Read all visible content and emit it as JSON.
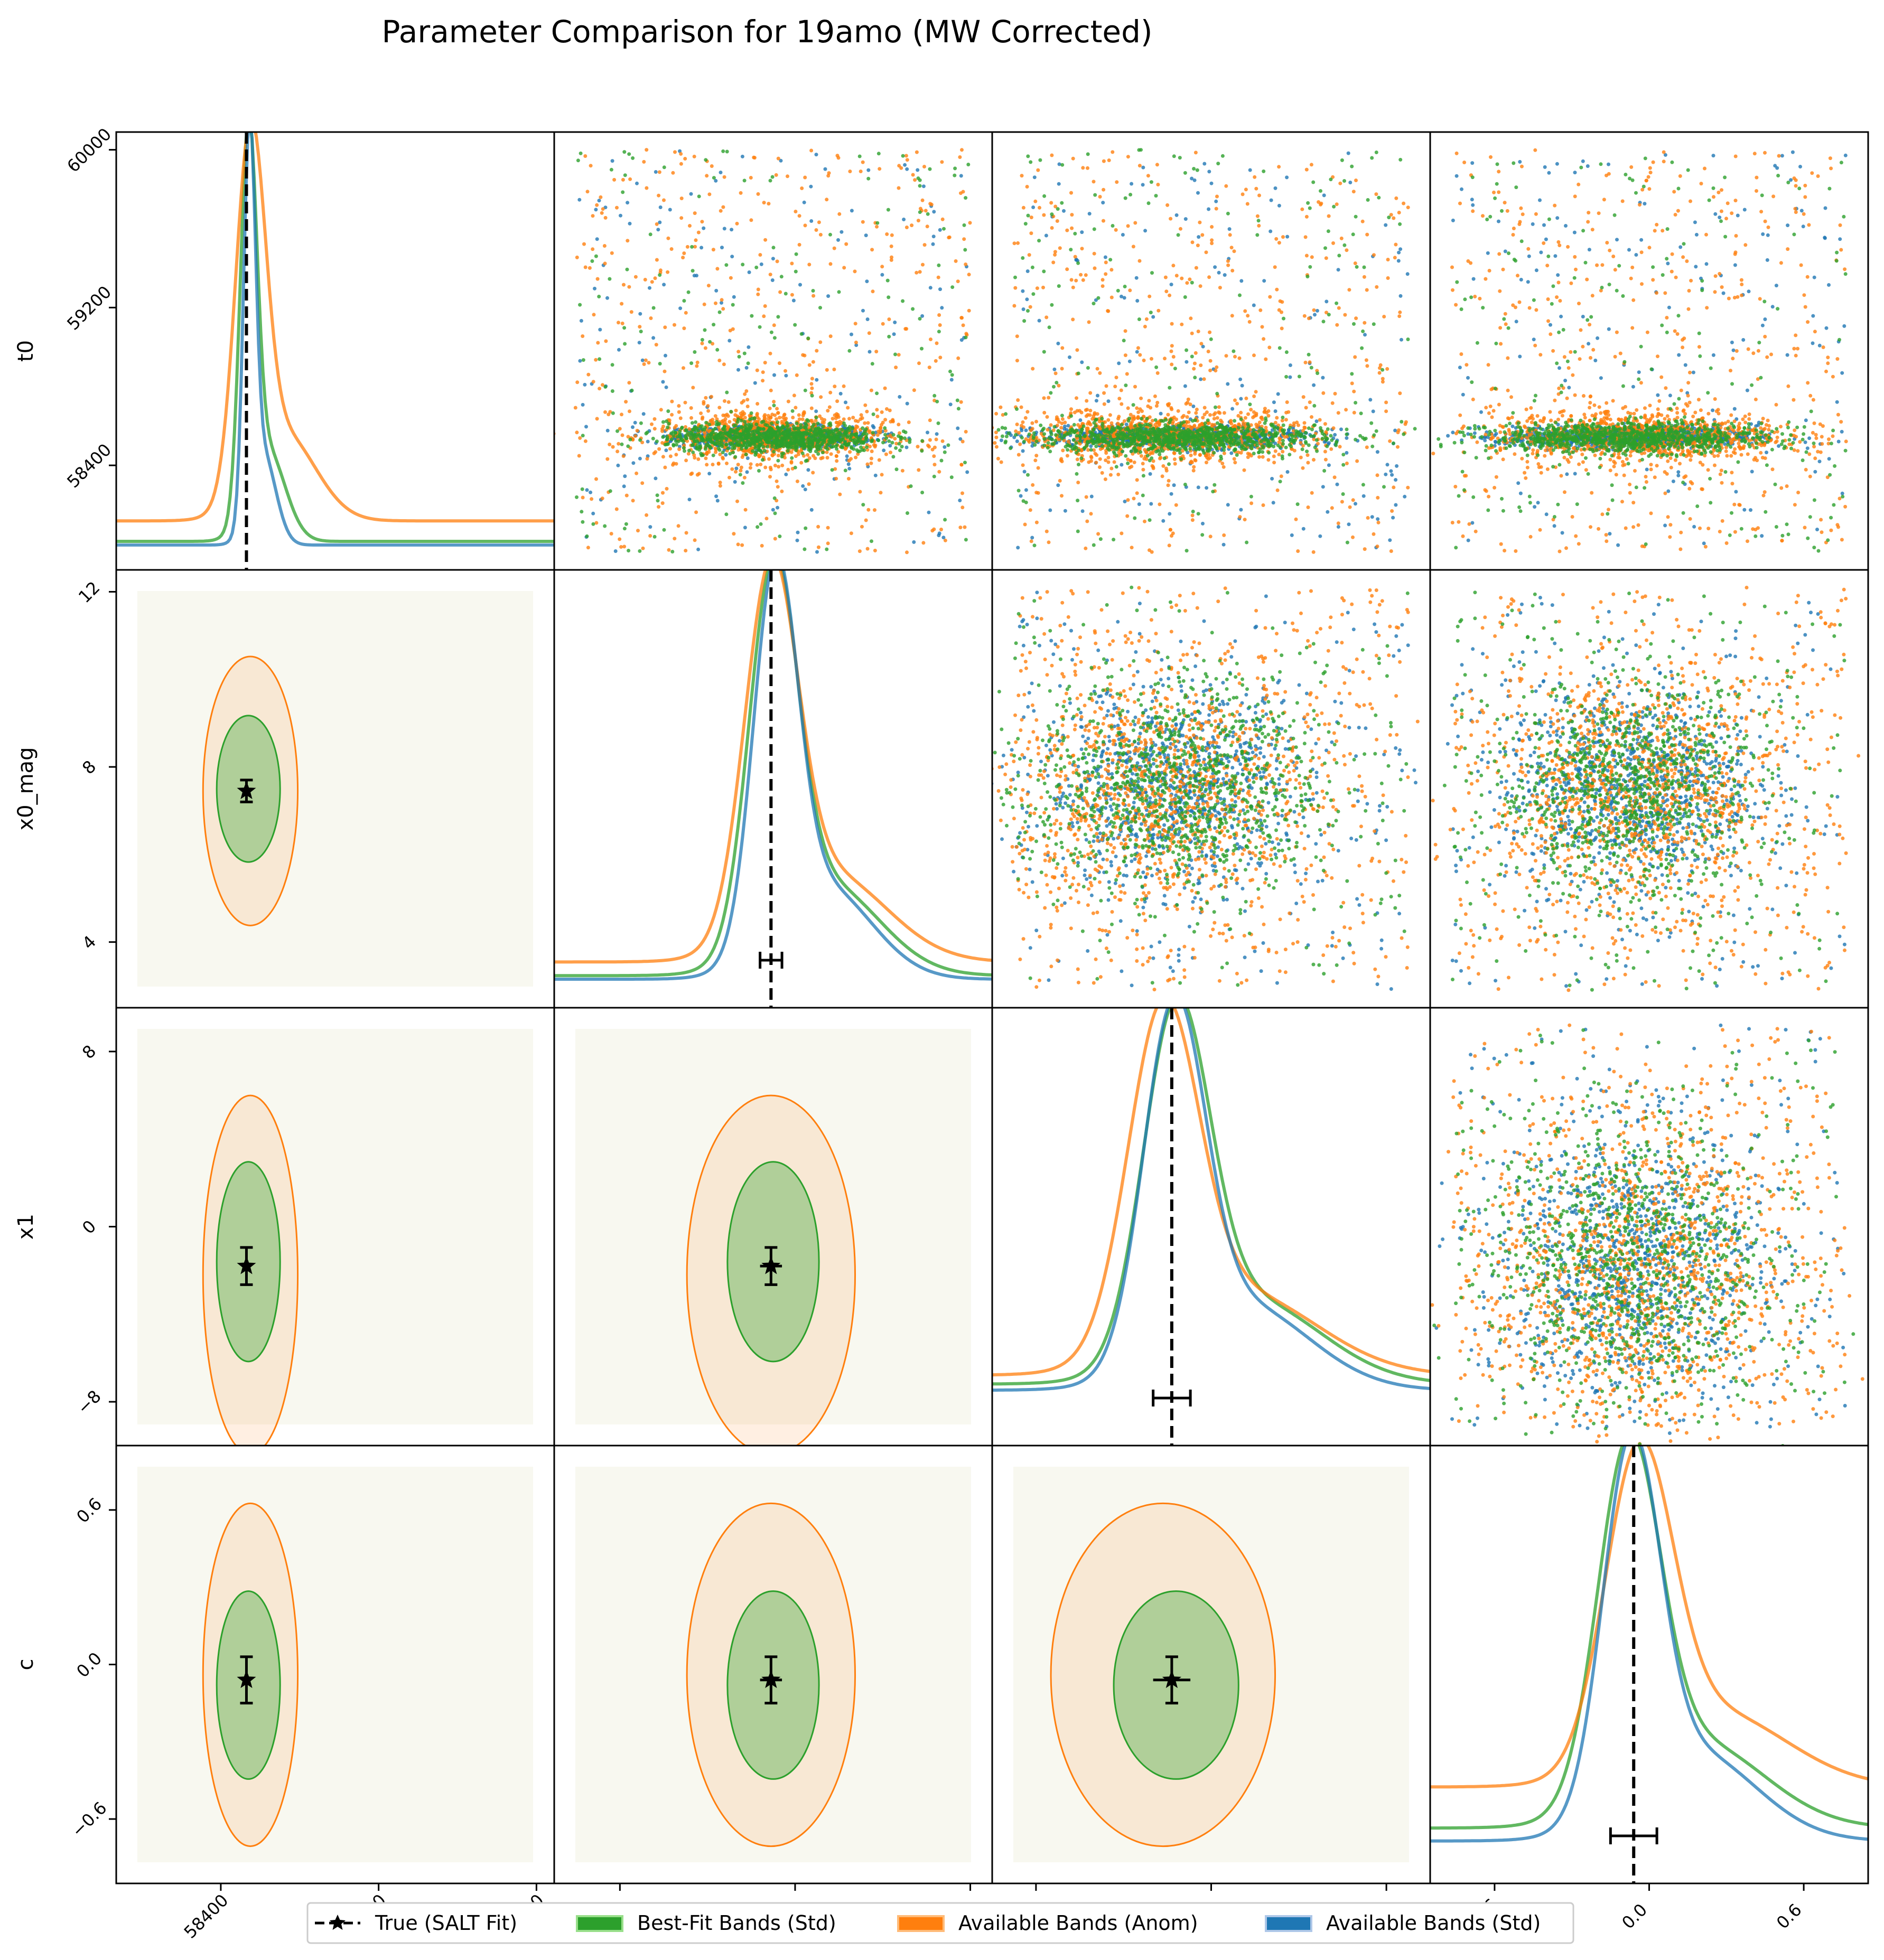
{
  "chart_data": {
    "type": "scatter",
    "title": "Parameter Comparison for 19amo (MW Corrected)",
    "parameters": [
      {
        "key": "t0",
        "label": "t0",
        "range": [
          57870,
          60090
        ],
        "ticks": [
          58400,
          59200,
          60000
        ]
      },
      {
        "key": "x0_mag",
        "label": "x0_mag",
        "range": [
          2.5,
          12.5
        ],
        "ticks": [
          4,
          8,
          12
        ]
      },
      {
        "key": "x1",
        "label": "x1",
        "range": [
          -10,
          10
        ],
        "ticks": [
          -8,
          0,
          8
        ]
      },
      {
        "key": "c",
        "label": "c",
        "range": [
          -0.85,
          0.85
        ],
        "ticks": [
          -0.6,
          0.0,
          0.6
        ]
      }
    ],
    "tick_labels": {
      "t0": [
        "58400",
        "59200",
        "60000"
      ],
      "x0_mag": [
        "4",
        "8",
        "12"
      ],
      "x1": [
        "−8",
        "0",
        "8"
      ],
      "c": [
        "−0.6",
        "0.0",
        "0.6"
      ]
    },
    "true_values": {
      "t0": 58530,
      "x0_mag": 7.45,
      "x1": -1.8,
      "c": -0.06
    },
    "true_errors": {
      "t0": 15,
      "x0_mag": 0.25,
      "x1": 0.85,
      "c": 0.09
    },
    "series": [
      {
        "name": "Best-Fit Bands (Std)",
        "color": "#2ca02c",
        "mode": {
          "t0": 58540,
          "x0_mag": 7.5,
          "x1": -1.6,
          "c": -0.08
        },
        "width": {
          "t0": 42,
          "x0_mag": 0.55,
          "x1": 1.5,
          "c": 0.12
        },
        "floor": {
          "t0": 0.02,
          "x0_mag": 0.03,
          "x1": 0.12,
          "c": 0.1
        }
      },
      {
        "name": "Available Bands (Anom)",
        "color": "#ff7f0e",
        "mode": {
          "t0": 58550,
          "x0_mag": 7.45,
          "x1": -2.2,
          "c": -0.04
        },
        "width": {
          "t0": 75,
          "x0_mag": 0.6,
          "x1": 1.6,
          "c": 0.13
        },
        "floor": {
          "t0": 0.08,
          "x0_mag": 0.07,
          "x1": 0.15,
          "c": 0.25
        }
      },
      {
        "name": "Available Bands (Std)",
        "color": "#1f77b4",
        "mode": {
          "t0": 58545,
          "x0_mag": 7.55,
          "x1": -1.7,
          "c": -0.07
        },
        "width": {
          "t0": 30,
          "x0_mag": 0.5,
          "x1": 1.4,
          "c": 0.11
        },
        "floor": {
          "t0": 0.01,
          "x0_mag": 0.02,
          "x1": 0.1,
          "c": 0.06
        }
      }
    ],
    "legend": {
      "placement": "bottom-center",
      "entries": [
        "True (SALT Fit)",
        "Best-Fit Bands (Std)",
        "Available Bands (Anom)",
        "Available Bands (Std)"
      ]
    },
    "grid": false
  }
}
